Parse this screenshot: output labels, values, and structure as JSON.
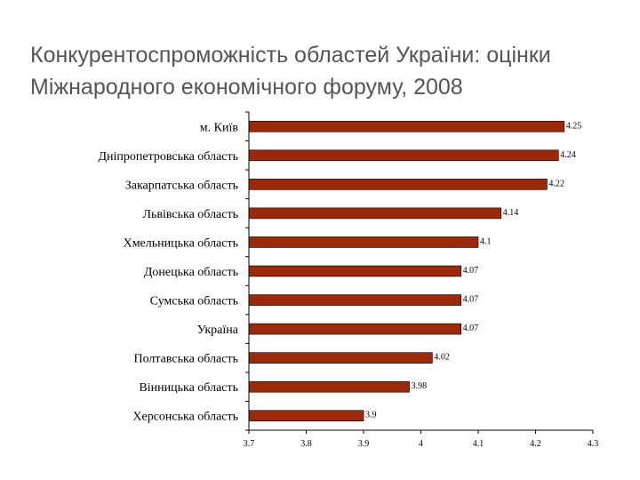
{
  "slide": {
    "title_line1": "Конкурентоспроможність областей України: оцінки",
    "title_line2": "Міжнародного економічного форуму, 2008"
  },
  "colors": {
    "bar": "#9b2a0a",
    "title": "#555555"
  },
  "chart_data": {
    "type": "bar",
    "orientation": "horizontal",
    "title": "",
    "xlabel": "",
    "ylabel": "",
    "xlim": [
      3.7,
      4.3
    ],
    "xticks": [
      "3.7",
      "3.8",
      "3.9",
      "4",
      "4.1",
      "4.2",
      "4.3"
    ],
    "grid": false,
    "legend": "none",
    "categories": [
      "м. Київ",
      "Дніпропетровська область",
      "Закарпатська область",
      "Львівська область",
      "Хмельницька область",
      "Донецька область",
      "Сумська область",
      "Україна",
      "Полтавська область",
      "Вінницька область",
      "Херсонська область"
    ],
    "values": [
      4.25,
      4.24,
      4.22,
      4.14,
      4.1,
      4.07,
      4.07,
      4.07,
      4.02,
      3.98,
      3.9
    ],
    "value_labels": [
      "4.25",
      "4.24",
      "4.22",
      "4.14",
      "4.1",
      "4.07",
      "4.07",
      "4.07",
      "4.02",
      "3.98",
      "3.9"
    ]
  }
}
